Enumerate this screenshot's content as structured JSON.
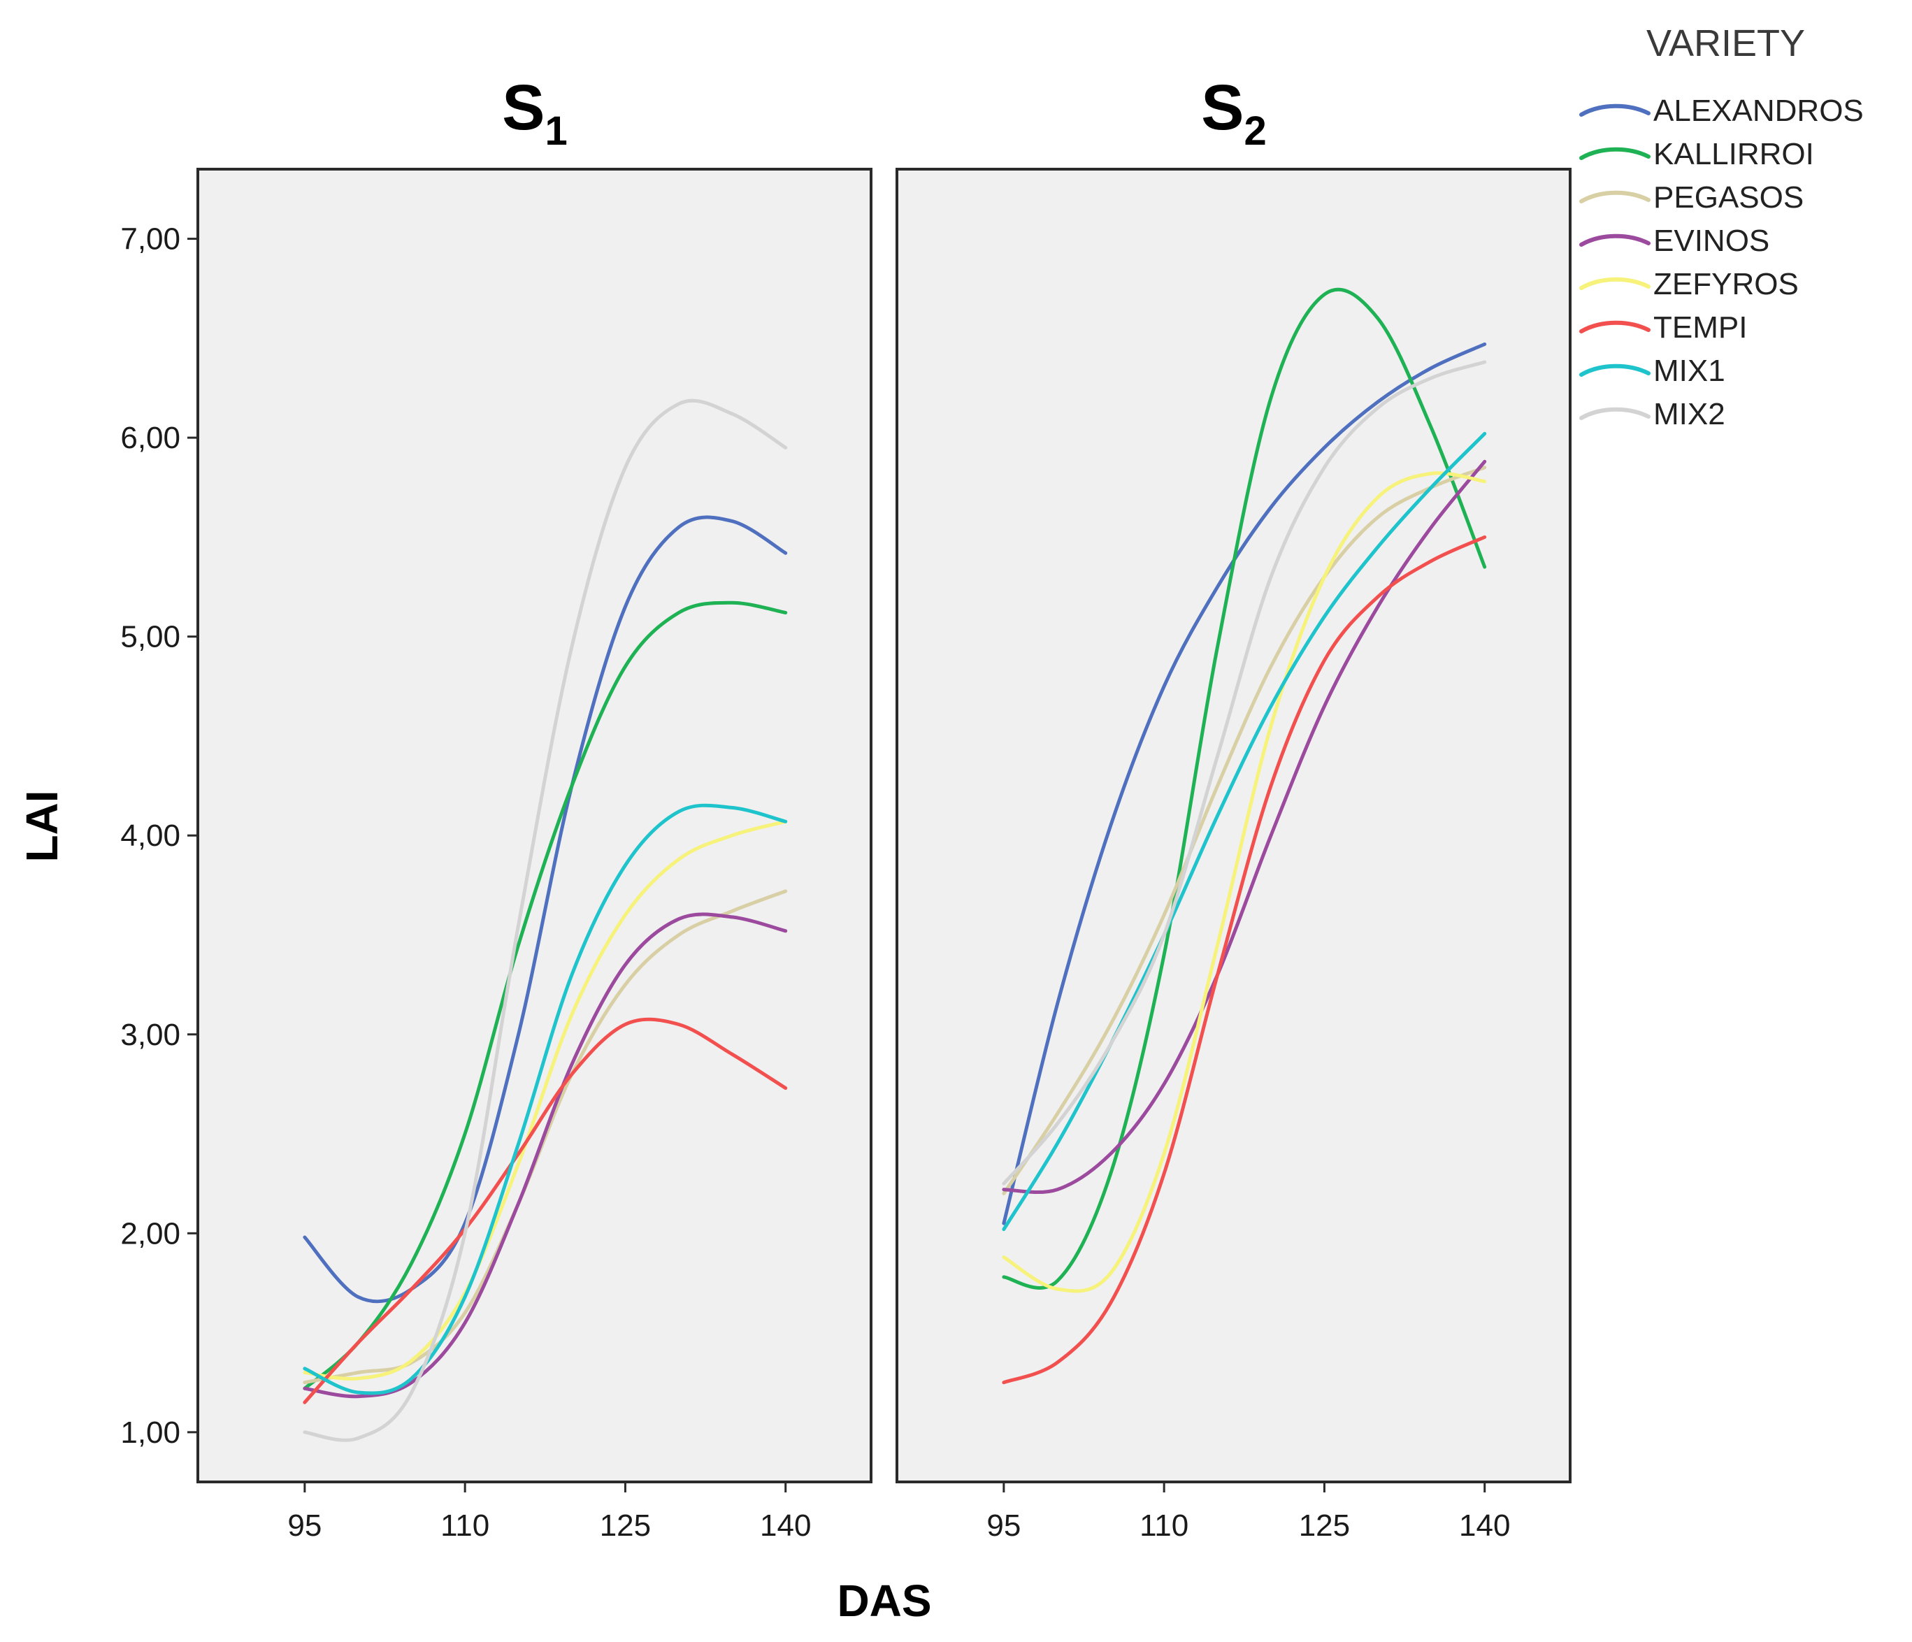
{
  "chart_data": {
    "type": "line",
    "xlabel": "DAS",
    "ylabel": "LAI",
    "x_ticks": [
      95,
      110,
      125,
      140
    ],
    "y_ticks": [
      "1,00",
      "2,00",
      "3,00",
      "4,00",
      "5,00",
      "6,00",
      "7,00"
    ],
    "xlim": [
      85,
      148
    ],
    "ylim": [
      0.75,
      7.35
    ],
    "legend": {
      "title": "VARIETY",
      "position": "top-right"
    },
    "series_meta": [
      {
        "name": "ALEXANDROS",
        "color": "#4f6fbf"
      },
      {
        "name": "KALLIRROI",
        "color": "#1fb254"
      },
      {
        "name": "PEGASOS",
        "color": "#d8cfa4"
      },
      {
        "name": "EVINOS",
        "color": "#9b4a9e"
      },
      {
        "name": "ZEFYROS",
        "color": "#f6f27a"
      },
      {
        "name": "TEMPI",
        "color": "#f2504f"
      },
      {
        "name": "MIX1",
        "color": "#1ec3cb"
      },
      {
        "name": "MIX2",
        "color": "#d3d3d3"
      }
    ],
    "panels": [
      {
        "title": "S",
        "subscript": "1",
        "series": [
          {
            "name": "ALEXANDROS",
            "x": [
              95,
              100,
              105,
              110,
              115,
              120,
              125,
              130,
              135,
              140
            ],
            "y": [
              1.98,
              1.68,
              1.72,
              2.05,
              3.0,
              4.25,
              5.15,
              5.55,
              5.58,
              5.42
            ]
          },
          {
            "name": "KALLIRROI",
            "x": [
              95,
              100,
              105,
              110,
              115,
              120,
              125,
              130,
              135,
              140
            ],
            "y": [
              1.22,
              1.45,
              1.85,
              2.5,
              3.45,
              4.25,
              4.85,
              5.12,
              5.17,
              5.12
            ]
          },
          {
            "name": "PEGASOS",
            "x": [
              95,
              100,
              105,
              110,
              115,
              120,
              125,
              130,
              135,
              140
            ],
            "y": [
              1.25,
              1.3,
              1.35,
              1.6,
              2.15,
              2.8,
              3.25,
              3.5,
              3.62,
              3.72
            ]
          },
          {
            "name": "EVINOS",
            "x": [
              95,
              100,
              105,
              110,
              115,
              120,
              125,
              130,
              135,
              140
            ],
            "y": [
              1.22,
              1.18,
              1.25,
              1.55,
              2.15,
              2.85,
              3.35,
              3.58,
              3.59,
              3.52
            ]
          },
          {
            "name": "ZEFYROS",
            "x": [
              95,
              100,
              105,
              110,
              115,
              120,
              125,
              130,
              135,
              140
            ],
            "y": [
              1.3,
              1.27,
              1.36,
              1.7,
              2.35,
              3.1,
              3.6,
              3.88,
              4.0,
              4.07
            ]
          },
          {
            "name": "TEMPI",
            "x": [
              95,
              100,
              105,
              110,
              115,
              120,
              125,
              130,
              135,
              140
            ],
            "y": [
              1.15,
              1.45,
              1.72,
              2.02,
              2.4,
              2.8,
              3.05,
              3.05,
              2.9,
              2.73
            ]
          },
          {
            "name": "MIX1",
            "x": [
              95,
              100,
              105,
              110,
              115,
              120,
              125,
              130,
              135,
              140
            ],
            "y": [
              1.32,
              1.2,
              1.27,
              1.68,
              2.45,
              3.3,
              3.85,
              4.12,
              4.14,
              4.07
            ]
          },
          {
            "name": "MIX2",
            "x": [
              95,
              100,
              105,
              110,
              115,
              120,
              125,
              130,
              135,
              140
            ],
            "y": [
              1.0,
              0.97,
              1.2,
              2.0,
              3.55,
              4.95,
              5.85,
              6.17,
              6.12,
              5.95
            ]
          }
        ]
      },
      {
        "title": "S",
        "subscript": "2",
        "series": [
          {
            "name": "ALEXANDROS",
            "x": [
              95,
              100,
              105,
              110,
              115,
              120,
              125,
              130,
              135,
              140
            ],
            "y": [
              2.05,
              3.15,
              4.05,
              4.75,
              5.25,
              5.65,
              5.95,
              6.18,
              6.35,
              6.47
            ]
          },
          {
            "name": "KALLIRROI",
            "x": [
              95,
              100,
              105,
              110,
              115,
              120,
              125,
              130,
              135,
              140
            ],
            "y": [
              1.78,
              1.76,
              2.3,
              3.4,
              4.95,
              6.2,
              6.72,
              6.6,
              6.05,
              5.35
            ]
          },
          {
            "name": "PEGASOS",
            "x": [
              95,
              100,
              105,
              110,
              115,
              120,
              125,
              130,
              135,
              140
            ],
            "y": [
              2.2,
              2.6,
              3.05,
              3.6,
              4.25,
              4.85,
              5.3,
              5.6,
              5.75,
              5.85
            ]
          },
          {
            "name": "EVINOS",
            "x": [
              95,
              100,
              105,
              110,
              115,
              120,
              125,
              130,
              135,
              140
            ],
            "y": [
              2.22,
              2.22,
              2.4,
              2.75,
              3.3,
              4.0,
              4.65,
              5.15,
              5.55,
              5.88
            ]
          },
          {
            "name": "ZEFYROS",
            "x": [
              95,
              100,
              105,
              110,
              115,
              120,
              125,
              130,
              135,
              140
            ],
            "y": [
              1.88,
              1.72,
              1.8,
              2.4,
              3.45,
              4.55,
              5.3,
              5.7,
              5.82,
              5.78
            ]
          },
          {
            "name": "TEMPI",
            "x": [
              95,
              100,
              105,
              110,
              115,
              120,
              125,
              130,
              135,
              140
            ],
            "y": [
              1.25,
              1.35,
              1.65,
              2.3,
              3.3,
              4.25,
              4.88,
              5.2,
              5.38,
              5.5
            ]
          },
          {
            "name": "MIX1",
            "x": [
              95,
              100,
              105,
              110,
              115,
              120,
              125,
              130,
              135,
              140
            ],
            "y": [
              2.02,
              2.45,
              2.95,
              3.5,
              4.1,
              4.65,
              5.1,
              5.45,
              5.75,
              6.02
            ]
          },
          {
            "name": "MIX2",
            "x": [
              95,
              100,
              105,
              110,
              115,
              120,
              125,
              130,
              135,
              140
            ],
            "y": [
              2.25,
              2.55,
              2.95,
              3.5,
              4.4,
              5.3,
              5.85,
              6.15,
              6.3,
              6.38
            ]
          }
        ]
      }
    ]
  }
}
